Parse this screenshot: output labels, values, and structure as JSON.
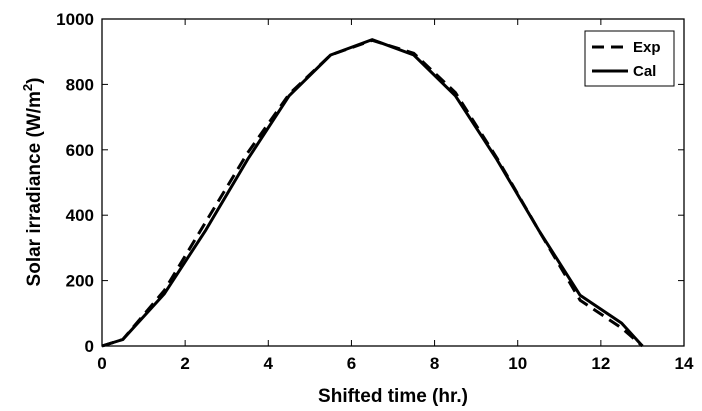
{
  "chart_data": {
    "type": "line",
    "xlabel": "Shifted time (hr.)",
    "ylabel_main": "Solar irradiance  (W/m",
    "ylabel_sup": "2",
    "ylabel_close": ")",
    "xlim": [
      0,
      14
    ],
    "ylim": [
      0,
      1000
    ],
    "xticks": [
      0,
      2,
      4,
      6,
      8,
      10,
      12,
      14
    ],
    "yticks": [
      0,
      200,
      400,
      600,
      800,
      1000
    ],
    "grid": false,
    "legend_position": "top-right",
    "series": [
      {
        "name": "Exp",
        "style": "dashed",
        "color": "#000000",
        "x": [
          0,
          0.5,
          1.5,
          2.5,
          3.5,
          4.5,
          5.5,
          6.5,
          7.5,
          8.5,
          9.5,
          10.5,
          11.5,
          12.5,
          13
        ],
        "y": [
          0,
          20,
          170,
          380,
          590,
          770,
          890,
          935,
          895,
          775,
          575,
          355,
          140,
          55,
          0
        ]
      },
      {
        "name": "Cal",
        "style": "solid",
        "color": "#000000",
        "x": [
          0,
          0.5,
          1.5,
          2.5,
          3.5,
          4.5,
          5.5,
          6.5,
          7.5,
          8.5,
          9.5,
          10.5,
          11.5,
          12.5,
          13
        ],
        "y": [
          0,
          20,
          160,
          355,
          570,
          765,
          890,
          937,
          890,
          765,
          570,
          355,
          155,
          70,
          0
        ]
      }
    ]
  }
}
